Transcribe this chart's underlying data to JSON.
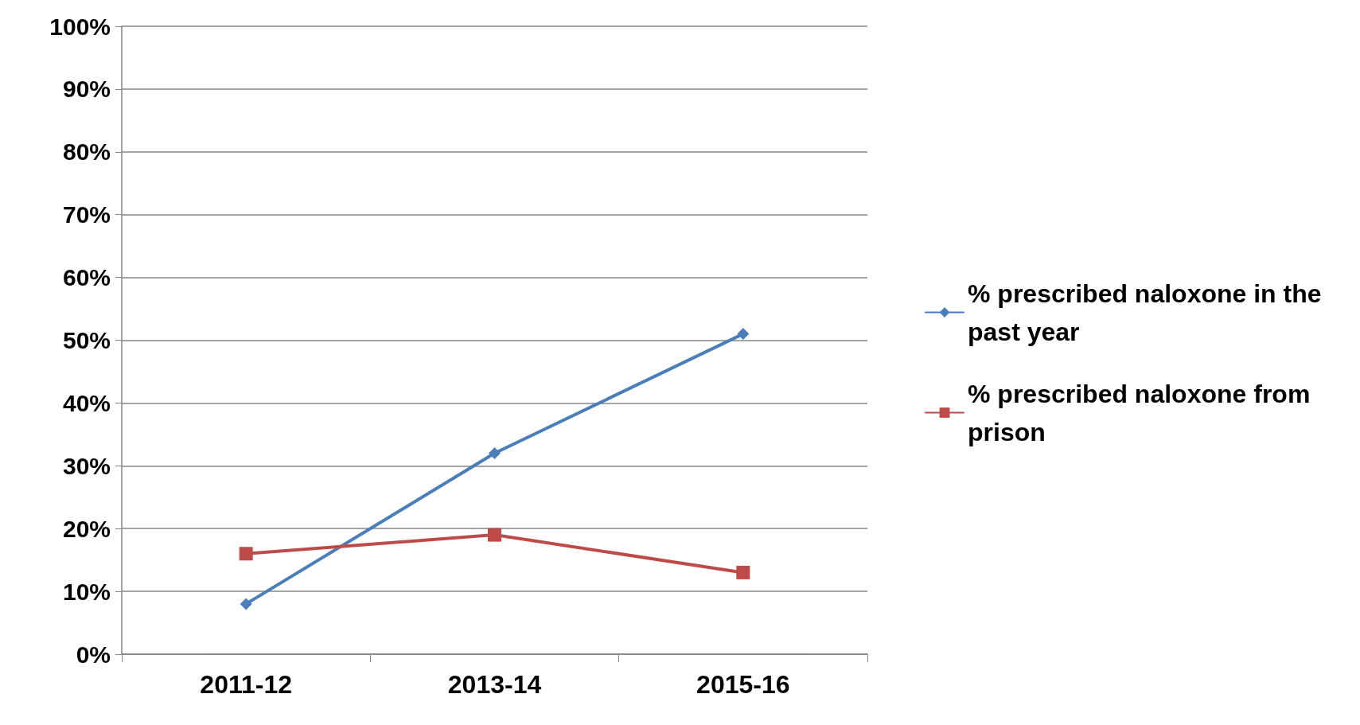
{
  "chart_data": {
    "type": "line",
    "categories": [
      "2011-12",
      "2013-14",
      "2015-16"
    ],
    "series": [
      {
        "name": "% prescribed naloxone in the past year",
        "color": "#4a7ebb",
        "marker": "diamond",
        "values": [
          8,
          32,
          51
        ]
      },
      {
        "name": "% prescribed naloxone from prison",
        "color": "#be4b48",
        "marker": "square",
        "values": [
          16,
          19,
          13
        ]
      }
    ],
    "ylim": [
      0,
      100
    ],
    "yticks": [
      {
        "value": 0,
        "label": "0%"
      },
      {
        "value": 10,
        "label": "10%"
      },
      {
        "value": 20,
        "label": "20%"
      },
      {
        "value": 30,
        "label": "30%"
      },
      {
        "value": 40,
        "label": "40%"
      },
      {
        "value": 50,
        "label": "50%"
      },
      {
        "value": 60,
        "label": "60%"
      },
      {
        "value": 70,
        "label": "70%"
      },
      {
        "value": 80,
        "label": "80%"
      },
      {
        "value": 90,
        "label": "90%"
      },
      {
        "value": 100,
        "label": "100%"
      }
    ],
    "grid": "y",
    "legend": "right",
    "line_style": "solid"
  }
}
